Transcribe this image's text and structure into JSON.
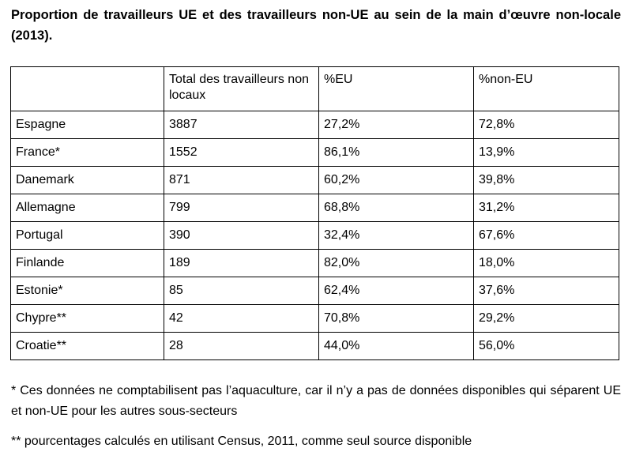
{
  "title": "Proportion de travailleurs UE et des travailleurs non-UE au sein de la main d’œuvre non-locale (2013).",
  "table": {
    "headers": [
      "",
      "Total des travailleurs non locaux",
      "%EU",
      "%non-EU"
    ],
    "rows": [
      [
        "Espagne",
        "3887",
        "27,2%",
        "72,8%"
      ],
      [
        "France*",
        "1552",
        "86,1%",
        "13,9%"
      ],
      [
        "Danemark",
        "871",
        "60,2%",
        "39,8%"
      ],
      [
        "Allemagne",
        "799",
        "68,8%",
        "31,2%"
      ],
      [
        "Portugal",
        "390",
        "32,4%",
        "67,6%"
      ],
      [
        "Finlande",
        "189",
        "82,0%",
        "18,0%"
      ],
      [
        "Estonie*",
        "85",
        "62,4%",
        "37,6%"
      ],
      [
        "Chypre**",
        "42",
        "70,8%",
        "29,2%"
      ],
      [
        "Croatie**",
        "28",
        "44,0%",
        "56,0%"
      ]
    ]
  },
  "notes": {
    "note1": "* Ces données ne comptabilisent pas l’aquaculture, car il n’y a pas de données disponibles qui séparent UE et non-UE pour les autres sous-secteurs",
    "note2": "** pourcentages calculés en utilisant Census, 2011, comme seul source disponible"
  }
}
